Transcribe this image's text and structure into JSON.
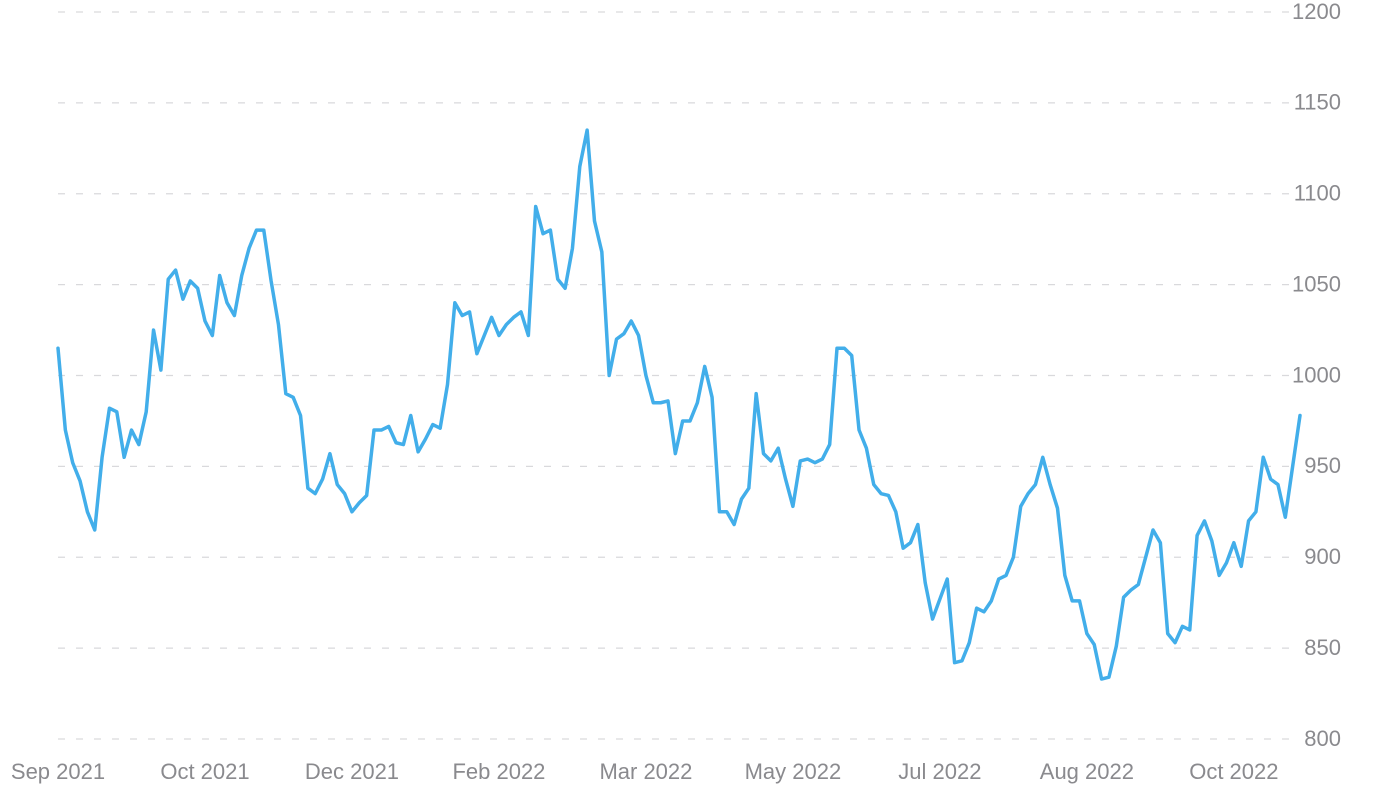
{
  "chart_data": {
    "type": "line",
    "color": "#42aeea",
    "grid": true,
    "ylim": [
      800,
      1200
    ],
    "yticks": [
      800,
      850,
      900,
      950,
      1000,
      1050,
      1100,
      1150,
      1200
    ],
    "categories": [
      "Sep 2021",
      null,
      null,
      null,
      null,
      null,
      null,
      null,
      null,
      null,
      null,
      null,
      null,
      null,
      null,
      null,
      null,
      null,
      null,
      null,
      "Oct 2021",
      null,
      null,
      null,
      null,
      null,
      null,
      null,
      null,
      null,
      null,
      null,
      null,
      null,
      null,
      null,
      null,
      null,
      null,
      null,
      "Dec 2021",
      null,
      null,
      null,
      null,
      null,
      null,
      null,
      null,
      null,
      null,
      null,
      null,
      null,
      null,
      null,
      null,
      null,
      null,
      null,
      "Feb 2022",
      null,
      null,
      null,
      null,
      null,
      null,
      null,
      null,
      null,
      null,
      null,
      null,
      null,
      null,
      null,
      null,
      null,
      null,
      null,
      "Mar 2022",
      null,
      null,
      null,
      null,
      null,
      null,
      null,
      null,
      null,
      null,
      null,
      null,
      null,
      null,
      null,
      null,
      null,
      null,
      null,
      "May 2022",
      null,
      null,
      null,
      null,
      null,
      null,
      null,
      null,
      null,
      null,
      null,
      null,
      null,
      null,
      null,
      null,
      null,
      null,
      null,
      "Jul 2022",
      null,
      null,
      null,
      null,
      null,
      null,
      null,
      null,
      null,
      null,
      null,
      null,
      null,
      null,
      null,
      null,
      null,
      null,
      null,
      "Aug 2022",
      null,
      null,
      null,
      null,
      null,
      null,
      null,
      null,
      null,
      null,
      null,
      null,
      null,
      null,
      null,
      null,
      null,
      null,
      null,
      "Oct 2022",
      null,
      null,
      null,
      null,
      null,
      null,
      null,
      null,
      null
    ],
    "values": [
      1015,
      970,
      952,
      942,
      925,
      915,
      955,
      982,
      980,
      955,
      970,
      962,
      980,
      1025,
      1003,
      1053,
      1058,
      1042,
      1052,
      1048,
      1030,
      1022,
      1055,
      1040,
      1033,
      1055,
      1070,
      1080,
      1080,
      1052,
      1028,
      990,
      988,
      978,
      938,
      935,
      943,
      957,
      940,
      935,
      925,
      930,
      934,
      970,
      970,
      972,
      963,
      962,
      978,
      958,
      965,
      973,
      971,
      995,
      1040,
      1033,
      1035,
      1012,
      1022,
      1032,
      1022,
      1028,
      1032,
      1035,
      1022,
      1093,
      1078,
      1080,
      1053,
      1048,
      1070,
      1115,
      1135,
      1085,
      1068,
      1000,
      1020,
      1023,
      1030,
      1022,
      1000,
      985,
      985,
      986,
      957,
      975,
      975,
      985,
      1005,
      988,
      925,
      925,
      918,
      932,
      938,
      990,
      957,
      953,
      960,
      943,
      928,
      953,
      954,
      952,
      954,
      962,
      1015,
      1015,
      1011,
      970,
      960,
      940,
      935,
      934,
      925,
      905,
      908,
      918,
      886,
      866,
      877,
      888,
      842,
      843,
      853,
      872,
      870,
      876,
      888,
      890,
      900,
      928,
      935,
      940,
      955,
      940,
      927,
      890,
      876,
      876,
      858,
      852,
      833,
      834,
      851,
      878,
      882,
      885,
      900,
      915,
      908,
      858,
      853,
      862,
      860,
      912,
      920,
      909,
      890,
      897,
      908,
      895,
      920,
      925,
      955,
      943,
      940,
      922,
      950,
      978
    ]
  }
}
